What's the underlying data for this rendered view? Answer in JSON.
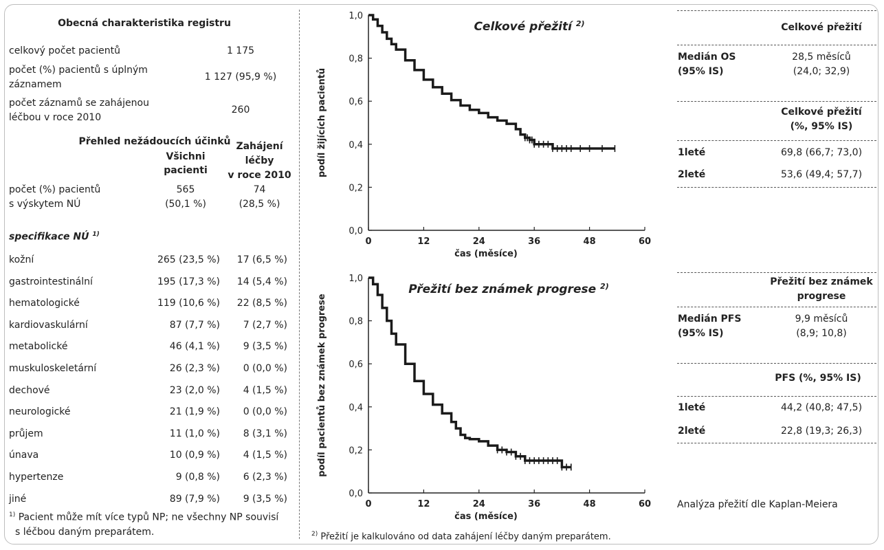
{
  "registry": {
    "title": "Obecná charakteristika registru",
    "rows": [
      {
        "label1": "celkový počet pacientů",
        "label2": "",
        "value": "1 175"
      },
      {
        "label1": "počet (%) pacientů s úplným",
        "label2": "záznamem",
        "value": "1 127 (95,9 %)"
      },
      {
        "label1": "počet záznamů se zahájenou",
        "label2": "léčbou v roce 2010",
        "value": "260"
      }
    ]
  },
  "ae": {
    "heading": "Přehled nežádoucích účinků",
    "col1_line1": "Všichni",
    "col1_line2": "pacienti",
    "col2_line1": "Zahájení",
    "col2_line2": "léčby",
    "col2_line3": "v roce 2010",
    "total_label1": "počet (%) pacientů",
    "total_label2": "s výskytem NÚ",
    "total_v1a": "565",
    "total_v1b": "(50,1 %)",
    "total_v2a": "74",
    "total_v2b": "(28,5 %)",
    "spec_label": "specifikace NÚ",
    "spec_sup": "1)",
    "rows": [
      {
        "label": "kožní",
        "all": "265 (23,5 %)",
        "y2010": "17 (6,5 %)"
      },
      {
        "label": "gastrointestinální",
        "all": "195 (17,3 %)",
        "y2010": "14 (5,4 %)"
      },
      {
        "label": "hematologické",
        "all": "119 (10,6 %)",
        "y2010": "22 (8,5 %)"
      },
      {
        "label": "kardiovaskulární",
        "all": "87 (7,7 %)",
        "y2010": "7 (2,7 %)"
      },
      {
        "label": "metabolické",
        "all": "46 (4,1 %)",
        "y2010": "9 (3,5 %)"
      },
      {
        "label": "muskuloskeletární",
        "all": "26 (2,3 %)",
        "y2010": "0 (0,0 %)"
      },
      {
        "label": "dechové",
        "all": "23 (2,0 %)",
        "y2010": "4 (1,5 %)"
      },
      {
        "label": "neurologické",
        "all": "21 (1,9 %)",
        "y2010": "0 (0,0 %)"
      },
      {
        "label": "průjem",
        "all": "11 (1,0 %)",
        "y2010": "8 (3,1 %)"
      },
      {
        "label": "únava",
        "all": "10 (0,9 %)",
        "y2010": "4 (1,5 %)"
      },
      {
        "label": "hypertenze",
        "all": "9 (0,8 %)",
        "y2010": "6 (2,3 %)"
      },
      {
        "label": "jiné",
        "all": "89 (7,9 %)",
        "y2010": "9 (3,5 %)"
      }
    ],
    "footnote_sup": "1)",
    "footnote_line1": "Pacient může mít více typů NP; ne všechny NP souvisí",
    "footnote_line2": "s léčbou daným preparátem."
  },
  "chart_data": [
    {
      "type": "line",
      "title": "Celkové přežití",
      "title_sup": "2)",
      "xlabel": "čas (měsíce)",
      "ylabel": "podíl žijících pacientů",
      "xlim": [
        0,
        60
      ],
      "ylim": [
        0,
        1
      ],
      "xticks": [
        "0",
        "12",
        "24",
        "36",
        "48",
        "60"
      ],
      "yticks": [
        "0,0",
        "0,2",
        "0,4",
        "0,6",
        "0,8",
        "1,0"
      ],
      "series": [
        {
          "x": [
            0,
            1,
            2,
            3,
            4,
            5,
            6,
            8,
            10,
            12,
            14,
            16,
            18,
            20,
            22,
            24,
            26,
            28,
            30,
            32,
            33,
            34,
            35,
            36,
            38,
            40,
            42,
            44,
            48,
            53.5
          ],
          "y": [
            1.0,
            0.98,
            0.95,
            0.92,
            0.89,
            0.865,
            0.84,
            0.79,
            0.745,
            0.7,
            0.665,
            0.635,
            0.605,
            0.58,
            0.56,
            0.545,
            0.525,
            0.51,
            0.495,
            0.47,
            0.445,
            0.43,
            0.42,
            0.4,
            0.4,
            0.38,
            0.38,
            0.38,
            0.38,
            0.38
          ]
        }
      ]
    },
    {
      "type": "line",
      "title": "Přežití bez známek progrese",
      "title_sup": "2)",
      "xlabel": "čas (měsíce)",
      "ylabel": "podíl pacientů bez známek progrese",
      "xlim": [
        0,
        60
      ],
      "ylim": [
        0,
        1
      ],
      "xticks": [
        "0",
        "12",
        "24",
        "36",
        "48",
        "60"
      ],
      "yticks": [
        "0,0",
        "0,2",
        "0,4",
        "0,6",
        "0,8",
        "1,0"
      ],
      "series": [
        {
          "x": [
            0,
            1,
            2,
            3,
            4,
            5,
            6,
            8,
            10,
            12,
            14,
            16,
            18,
            19,
            20,
            21,
            22,
            24,
            26,
            28,
            30,
            32,
            34,
            36,
            38,
            40,
            42,
            44
          ],
          "y": [
            1.0,
            0.97,
            0.92,
            0.86,
            0.8,
            0.74,
            0.69,
            0.6,
            0.52,
            0.46,
            0.41,
            0.37,
            0.33,
            0.3,
            0.27,
            0.255,
            0.25,
            0.24,
            0.22,
            0.2,
            0.19,
            0.17,
            0.15,
            0.15,
            0.15,
            0.15,
            0.12,
            0.12
          ]
        }
      ]
    }
  ],
  "os_table": {
    "header": "Celkové přežití",
    "median_label1": "Medián OS",
    "median_label2": "(95% IS)",
    "median_value1": "28,5 měsíců",
    "median_value2": "(24,0; 32,9)",
    "rate_header1": "Celkové přežití",
    "rate_header2": "(%, 95% IS)",
    "rows": [
      {
        "label": "1leté",
        "value": "69,8 (66,7; 73,0)"
      },
      {
        "label": "2leté",
        "value": "53,6 (49,4; 57,7)"
      }
    ]
  },
  "pfs_table": {
    "header1": "Přežití bez známek",
    "header2": "progrese",
    "median_label1": "Medián PFS",
    "median_label2": "(95% IS)",
    "median_value1": "9,9 měsíců",
    "median_value2": "(8,9; 10,8)",
    "rate_header": "PFS  (%, 95% IS)",
    "rows": [
      {
        "label": "1leté",
        "value": "44,2 (40,8; 47,5)"
      },
      {
        "label": "2leté",
        "value": "22,8 (19,3; 26,3)"
      }
    ]
  },
  "km_note": "Analýza přežití dle Kaplan-Meiera",
  "bottom_note_sup": "2)",
  "bottom_note": "Přežití je kalkulováno od data zahájení léčby daným preparátem."
}
